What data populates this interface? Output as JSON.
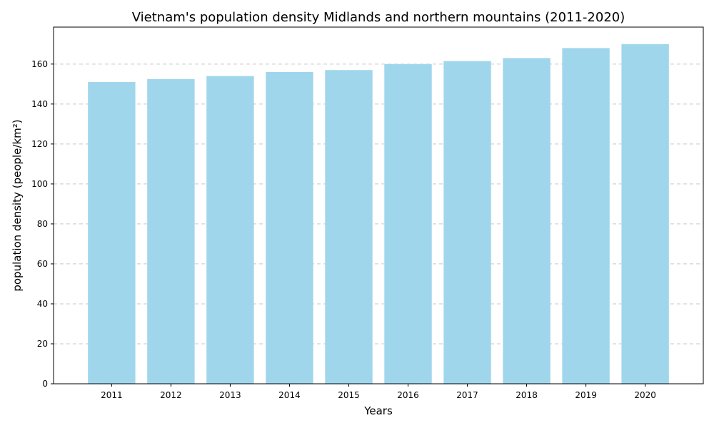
{
  "chart_data": {
    "type": "bar",
    "title": "Vietnam's population density Midlands and northern mountains (2011-2020)",
    "xlabel": "Years",
    "ylabel": "population density (people/km²)",
    "categories": [
      "2011",
      "2012",
      "2013",
      "2014",
      "2015",
      "2016",
      "2017",
      "2018",
      "2019",
      "2020"
    ],
    "values": [
      151,
      152.5,
      154,
      156,
      157,
      160,
      161.5,
      163,
      168,
      170
    ],
    "ylim": [
      0,
      178.5
    ],
    "yticks": [
      0,
      20,
      40,
      60,
      80,
      100,
      120,
      140,
      160
    ],
    "grid": "y-dashed",
    "legend": "none",
    "bar_color": "#9fd6ec"
  }
}
